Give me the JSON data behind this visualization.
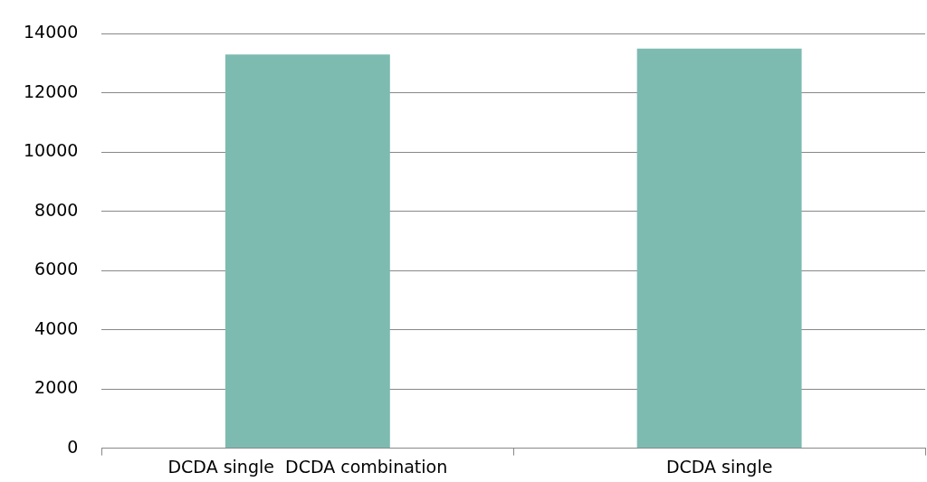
{
  "chart_data": {
    "type": "bar",
    "categories": [
      "DCDA single  DCDA combination",
      "DCDA single"
    ],
    "values": [
      13300,
      13500
    ],
    "color": "#7dbbb1",
    "ylim": [
      0,
      14000
    ],
    "yticks": [
      0,
      2000,
      4000,
      6000,
      8000,
      10000,
      12000,
      14000
    ],
    "grid": "y",
    "legend": false
  }
}
